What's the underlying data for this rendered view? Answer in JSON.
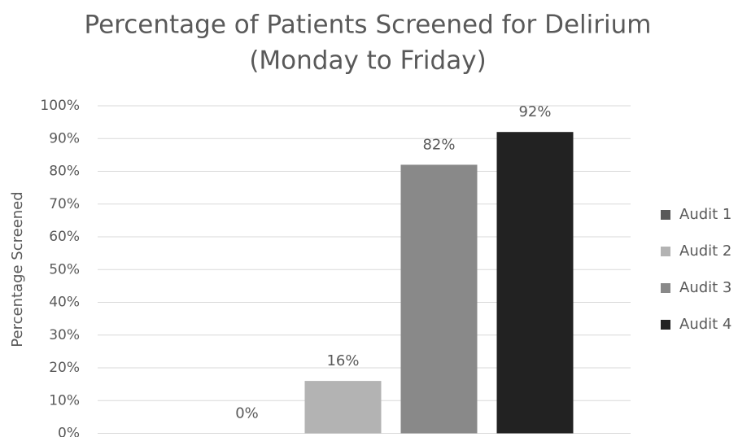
{
  "chart_data": {
    "type": "bar",
    "title": [
      "Percentage of Patients Screened for Delirium",
      "(Monday to Friday)"
    ],
    "y_label": "Percentage Screened",
    "categories": [
      null
    ],
    "series": [
      {
        "name": "Audit 1",
        "color": "#595959",
        "values": [
          0
        ],
        "value_labels": [
          "0%"
        ]
      },
      {
        "name": "Audit 2",
        "color": "#b3b3b3",
        "values": [
          16
        ],
        "value_labels": [
          "16%"
        ]
      },
      {
        "name": "Audit 3",
        "color": "#898989",
        "values": [
          82
        ],
        "value_labels": [
          "82%"
        ]
      },
      {
        "name": "Audit 4",
        "color": "#222222",
        "values": [
          92
        ],
        "value_labels": [
          "92%"
        ]
      }
    ],
    "ylim": [
      0,
      100
    ],
    "yticks": [
      {
        "value": 0,
        "label": "0%"
      },
      {
        "value": 10,
        "label": "10%"
      },
      {
        "value": 20,
        "label": "20%"
      },
      {
        "value": 30,
        "label": "30%"
      },
      {
        "value": 40,
        "label": "40%"
      },
      {
        "value": 50,
        "label": "50%"
      },
      {
        "value": 60,
        "label": "60%"
      },
      {
        "value": 70,
        "label": "70%"
      },
      {
        "value": 80,
        "label": "80%"
      },
      {
        "value": 90,
        "label": "90%"
      },
      {
        "value": 100,
        "label": "100%"
      }
    ],
    "grid": true,
    "legend": "right"
  }
}
